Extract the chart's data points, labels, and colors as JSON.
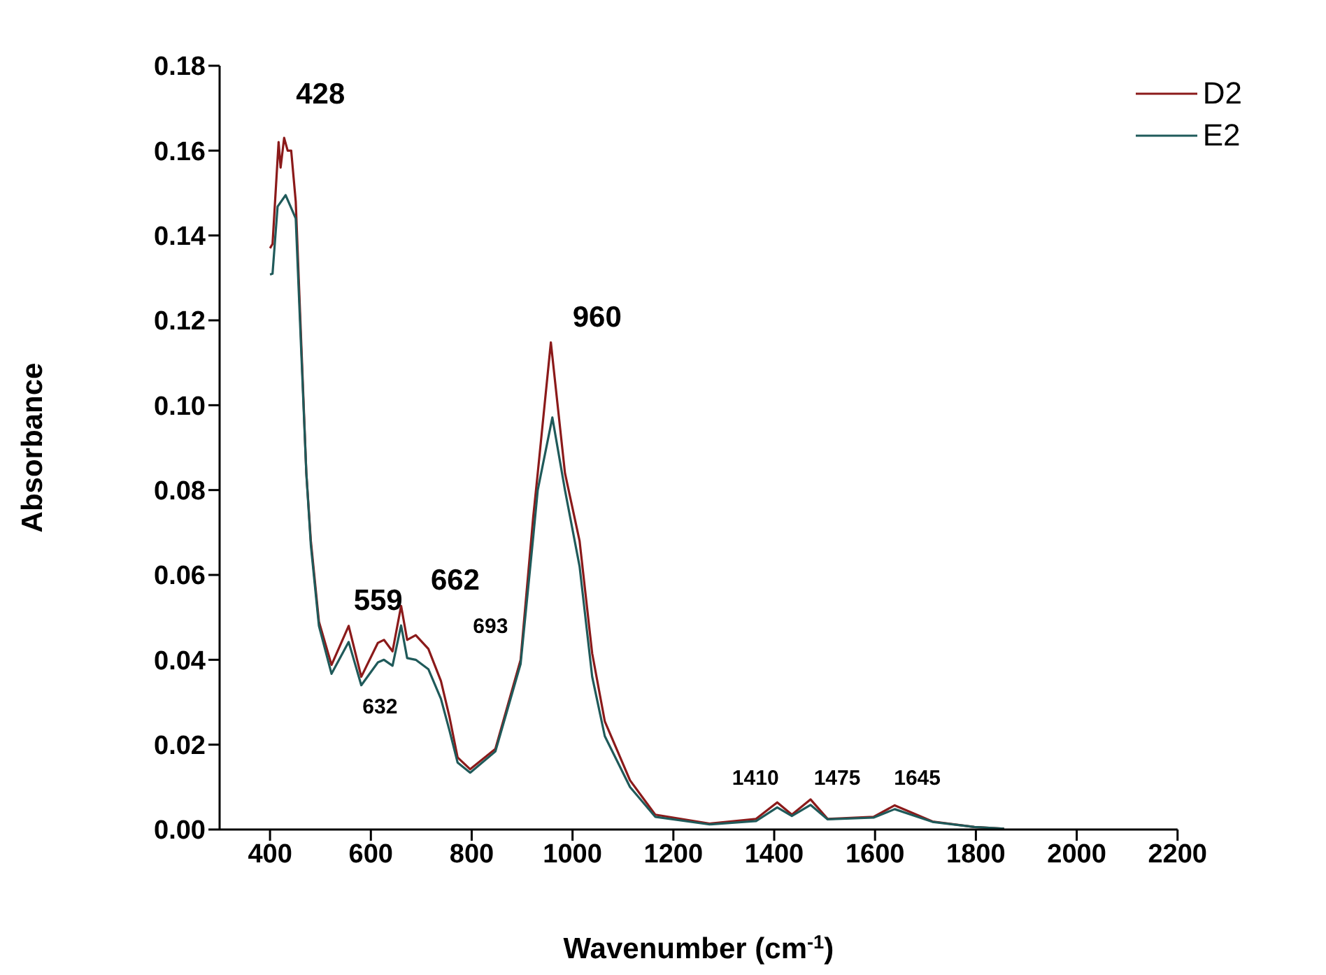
{
  "chart_data": {
    "type": "line",
    "xlabel": "Wavenumber (cm$^{-1}$)",
    "ylabel": "Absorbance",
    "xlim": [
      300,
      2200
    ],
    "xticks": [
      400,
      600,
      800,
      1000,
      1200,
      1400,
      1600,
      1800,
      2000,
      2200
    ],
    "ylim": [
      0,
      0.18
    ],
    "yticks": [
      {
        "value": 0,
        "label": "0.00"
      },
      {
        "value": 0.02,
        "label": "0.02"
      },
      {
        "value": 0.04,
        "label": "0.04"
      },
      {
        "value": 0.06,
        "label": "0.06"
      },
      {
        "value": 0.08,
        "label": "0.08"
      },
      {
        "value": 0.1,
        "label": "0.10"
      },
      {
        "value": 0.12,
        "label": "0.12"
      },
      {
        "value": 0.14,
        "label": "0.14"
      },
      {
        "value": 0.16,
        "label": "0.16"
      },
      {
        "value": 0.18,
        "label": "0.18"
      }
    ],
    "grid": false,
    "legend": "top right",
    "marker": "none",
    "line_style": "solid",
    "series": [
      {
        "name": "D2",
        "color": "#8b1a1a",
        "x": [
          400,
          405,
          412,
          417,
          421,
          428,
          435,
          442,
          451,
          472,
          481,
          497,
          522,
          556,
          581,
          614,
          626,
          643,
          660,
          672,
          689,
          714,
          739,
          756,
          772,
          797,
          847,
          897,
          922,
          931,
          957,
          985,
          1014,
          1039,
          1064,
          1114,
          1164,
          1272,
          1364,
          1406,
          1435,
          1472,
          1506,
          1597,
          1639,
          1714,
          1797,
          1856
        ],
        "values": [
          0.137,
          0.138,
          0.152,
          0.162,
          0.156,
          0.163,
          0.16,
          0.16,
          0.148,
          0.084,
          0.068,
          0.049,
          0.0388,
          0.048,
          0.036,
          0.044,
          0.0447,
          0.042,
          0.0527,
          0.0447,
          0.0458,
          0.0426,
          0.035,
          0.0265,
          0.017,
          0.0142,
          0.019,
          0.04,
          0.0736,
          0.084,
          0.1148,
          0.084,
          0.068,
          0.0415,
          0.0255,
          0.0116,
          0.0035,
          0.0014,
          0.0025,
          0.0064,
          0.0035,
          0.0071,
          0.0025,
          0.003,
          0.0057,
          0.0019,
          0.0006,
          0.0002
        ]
      },
      {
        "name": "E2",
        "color": "#1f5a5a",
        "x": [
          400,
          405,
          415,
          431,
          451,
          472,
          481,
          497,
          522,
          556,
          581,
          614,
          626,
          643,
          660,
          672,
          689,
          714,
          739,
          756,
          772,
          797,
          847,
          897,
          922,
          931,
          960,
          985,
          1014,
          1039,
          1064,
          1114,
          1164,
          1272,
          1364,
          1406,
          1435,
          1472,
          1506,
          1597,
          1639,
          1714,
          1797,
          1856
        ],
        "values": [
          0.1308,
          0.131,
          0.1468,
          0.1495,
          0.144,
          0.084,
          0.067,
          0.048,
          0.0367,
          0.0442,
          0.034,
          0.0394,
          0.04,
          0.0386,
          0.0481,
          0.0404,
          0.04,
          0.0378,
          0.0308,
          0.0233,
          0.0158,
          0.0134,
          0.0184,
          0.039,
          0.0689,
          0.08,
          0.0971,
          0.08,
          0.062,
          0.036,
          0.022,
          0.01,
          0.003,
          0.0012,
          0.002,
          0.0052,
          0.0032,
          0.0058,
          0.0024,
          0.0028,
          0.0048,
          0.0018,
          0.0006,
          0.0002
        ]
      }
    ],
    "annotations": [
      {
        "text": "428",
        "x": 428,
        "y": 0.163
      },
      {
        "text": "960",
        "x": 960,
        "y": 0.1148
      },
      {
        "text": "559",
        "x": 559,
        "y": 0.048
      },
      {
        "text": "662",
        "x": 662,
        "y": 0.0527
      },
      {
        "text": "693",
        "x": 693,
        "y": 0.0455
      },
      {
        "text": "632",
        "x": 632,
        "y": 0.042
      },
      {
        "text": "1410",
        "x": 1410,
        "y": 0.0064
      },
      {
        "text": "1475",
        "x": 1475,
        "y": 0.0071
      },
      {
        "text": "1645",
        "x": 1645,
        "y": 0.0057
      }
    ]
  }
}
